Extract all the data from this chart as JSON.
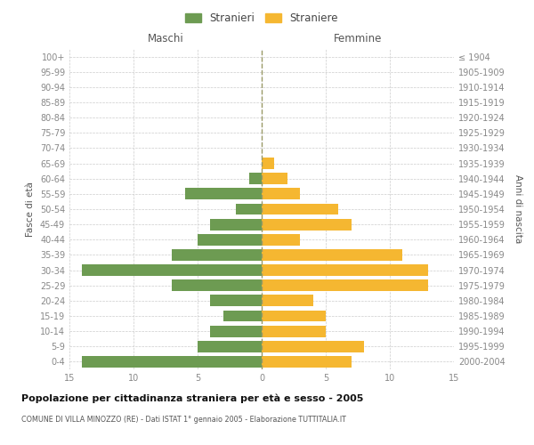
{
  "age_groups": [
    "0-4",
    "5-9",
    "10-14",
    "15-19",
    "20-24",
    "25-29",
    "30-34",
    "35-39",
    "40-44",
    "45-49",
    "50-54",
    "55-59",
    "60-64",
    "65-69",
    "70-74",
    "75-79",
    "80-84",
    "85-89",
    "90-94",
    "95-99",
    "100+"
  ],
  "birth_years": [
    "2000-2004",
    "1995-1999",
    "1990-1994",
    "1985-1989",
    "1980-1984",
    "1975-1979",
    "1970-1974",
    "1965-1969",
    "1960-1964",
    "1955-1959",
    "1950-1954",
    "1945-1949",
    "1940-1944",
    "1935-1939",
    "1930-1934",
    "1925-1929",
    "1920-1924",
    "1915-1919",
    "1910-1914",
    "1905-1909",
    "≤ 1904"
  ],
  "males": [
    14,
    5,
    4,
    3,
    4,
    7,
    14,
    7,
    5,
    4,
    2,
    6,
    1,
    0,
    0,
    0,
    0,
    0,
    0,
    0,
    0
  ],
  "females": [
    7,
    8,
    5,
    5,
    4,
    13,
    13,
    11,
    3,
    7,
    6,
    3,
    2,
    1,
    0,
    0,
    0,
    0,
    0,
    0,
    0
  ],
  "male_color": "#6d9b52",
  "female_color": "#f5b731",
  "grid_color": "#cccccc",
  "centerline_color": "#999966",
  "title": "Popolazione per cittadinanza straniera per età e sesso - 2005",
  "subtitle": "COMUNE DI VILLA MINOZZO (RE) - Dati ISTAT 1° gennaio 2005 - Elaborazione TUTTITALIA.IT",
  "xlabel_left": "Maschi",
  "xlabel_right": "Femmine",
  "ylabel_left": "Fasce di età",
  "ylabel_right": "Anni di nascita",
  "legend_stranieri": "Stranieri",
  "legend_straniere": "Straniere",
  "xlim": 15,
  "xticks": [
    -15,
    -10,
    -5,
    0,
    5,
    10,
    15
  ],
  "xtick_labels": [
    "15",
    "10",
    "5",
    "0",
    "5",
    "10",
    "15"
  ]
}
